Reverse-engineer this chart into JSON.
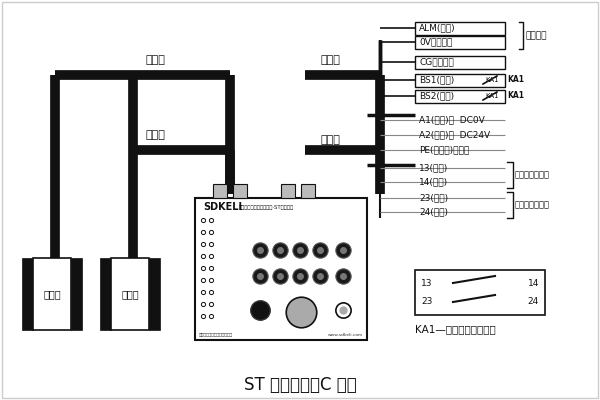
{
  "bg_color": "#f0f0f0",
  "title": "ST 型控制器（C 型）",
  "title_fontsize": 12,
  "wire_color": "#111111",
  "box_color": "#111111",
  "text_color": "#111111",
  "label_transmitter": "发射器",
  "label_receiver": "接收器",
  "label_line1": "传输线",
  "label_line2": "传输线",
  "label_signal": "信号线",
  "label_power": "电源线",
  "brand": "SDKELI",
  "brand_sub": "光片型激光安全保护装置·ST型控制器",
  "company": "山东凯力克电子技术有限公司",
  "website": "www.sdkeli.com",
  "relay_label": "KA1—折弯机慢下继电器",
  "ka1_text": "KA1",
  "right_labels_top": [
    "ALM(黑色)",
    "0V（绿色）",
    "CG（红色）",
    "BS1(蓝色)",
    "BS2(棕色)"
  ],
  "right_labels_mid": [
    "A1(白色)：  DC0V",
    "A2(红色)：  DC24V",
    "PE(黄绿色)：接地",
    "13(蓝色)",
    "14(蓝色)",
    "23(棕色)",
    "24(棕色)"
  ],
  "bracket_alarm": "接报警器",
  "bracket_ctrl1": "接快下控制输出",
  "bracket_ctrl2": "接快下控制输出"
}
